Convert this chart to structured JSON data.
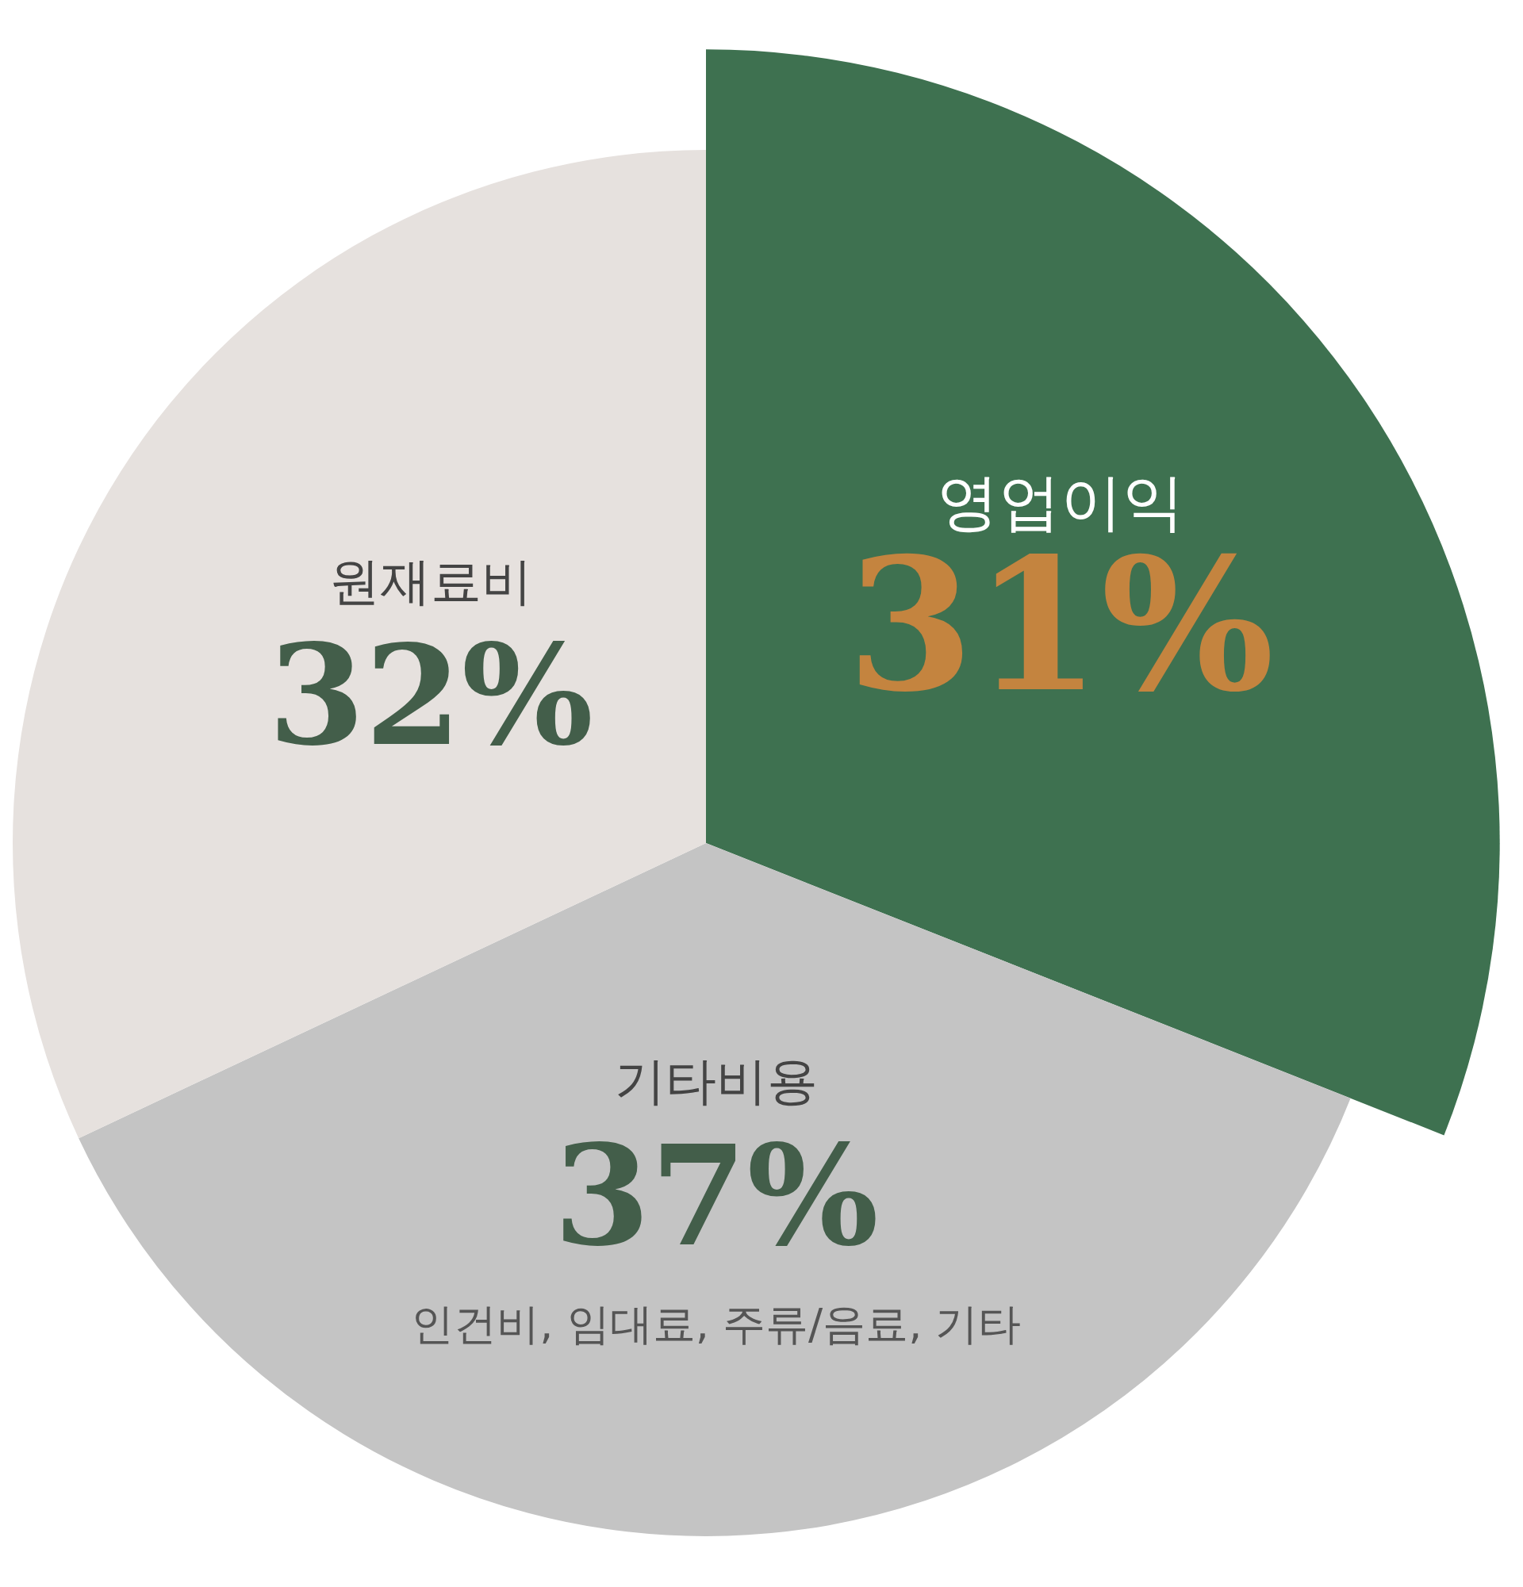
{
  "chart_data": {
    "type": "pie",
    "categories": [
      "영업이익",
      "기타비용",
      "원재료비"
    ],
    "values": [
      31,
      37,
      32
    ],
    "value_labels": [
      "31%",
      "37%",
      "32%"
    ],
    "colors": [
      "#3e7150",
      "#c4c4c4",
      "#e6e1de"
    ],
    "legend": false,
    "annotations": [
      {
        "text": "인건비, 임대료, 주류/음료, 기타",
        "x": "기타비용"
      }
    ]
  }
}
